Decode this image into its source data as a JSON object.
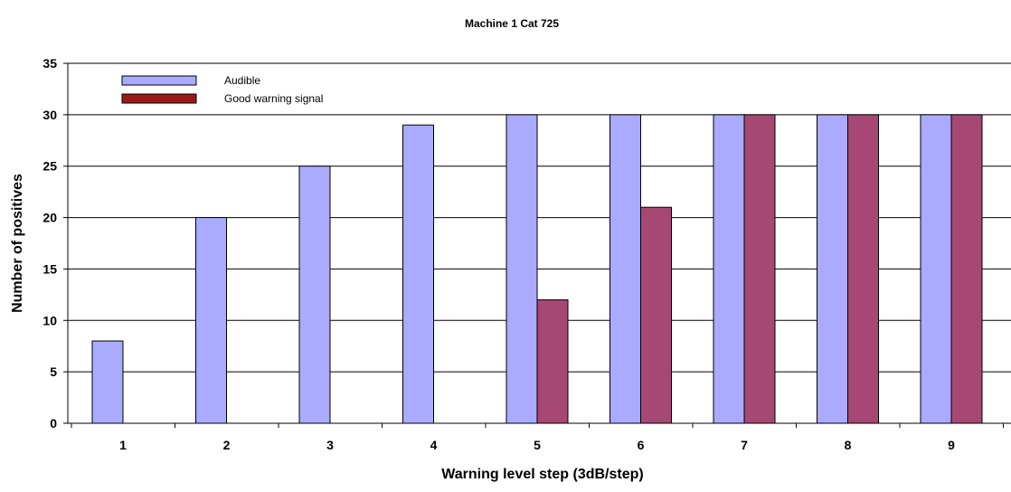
{
  "chart_data": {
    "type": "bar",
    "title": "Machine 1 Cat 725",
    "xlabel": "Warning level step (3dB/step)",
    "ylabel": "Number of positives",
    "categories": [
      "1",
      "2",
      "3",
      "4",
      "5",
      "6",
      "7",
      "8",
      "9"
    ],
    "ylim": [
      0,
      35
    ],
    "yticks": [
      "0",
      "5",
      "10",
      "15",
      "20",
      "25",
      "30",
      "35"
    ],
    "grid": true,
    "legend_position": "top-left",
    "series": [
      {
        "name": "Audible",
        "color": "#aaaaff",
        "values": [
          8,
          20,
          25,
          29,
          30,
          30,
          30,
          30,
          30
        ]
      },
      {
        "name": "Good warning signal",
        "color": "#a64873",
        "values": [
          0,
          0,
          0,
          0,
          12,
          21,
          30,
          30,
          30
        ]
      }
    ],
    "legend_colors": [
      "#aaaaff",
      "#9e1a1a"
    ]
  }
}
